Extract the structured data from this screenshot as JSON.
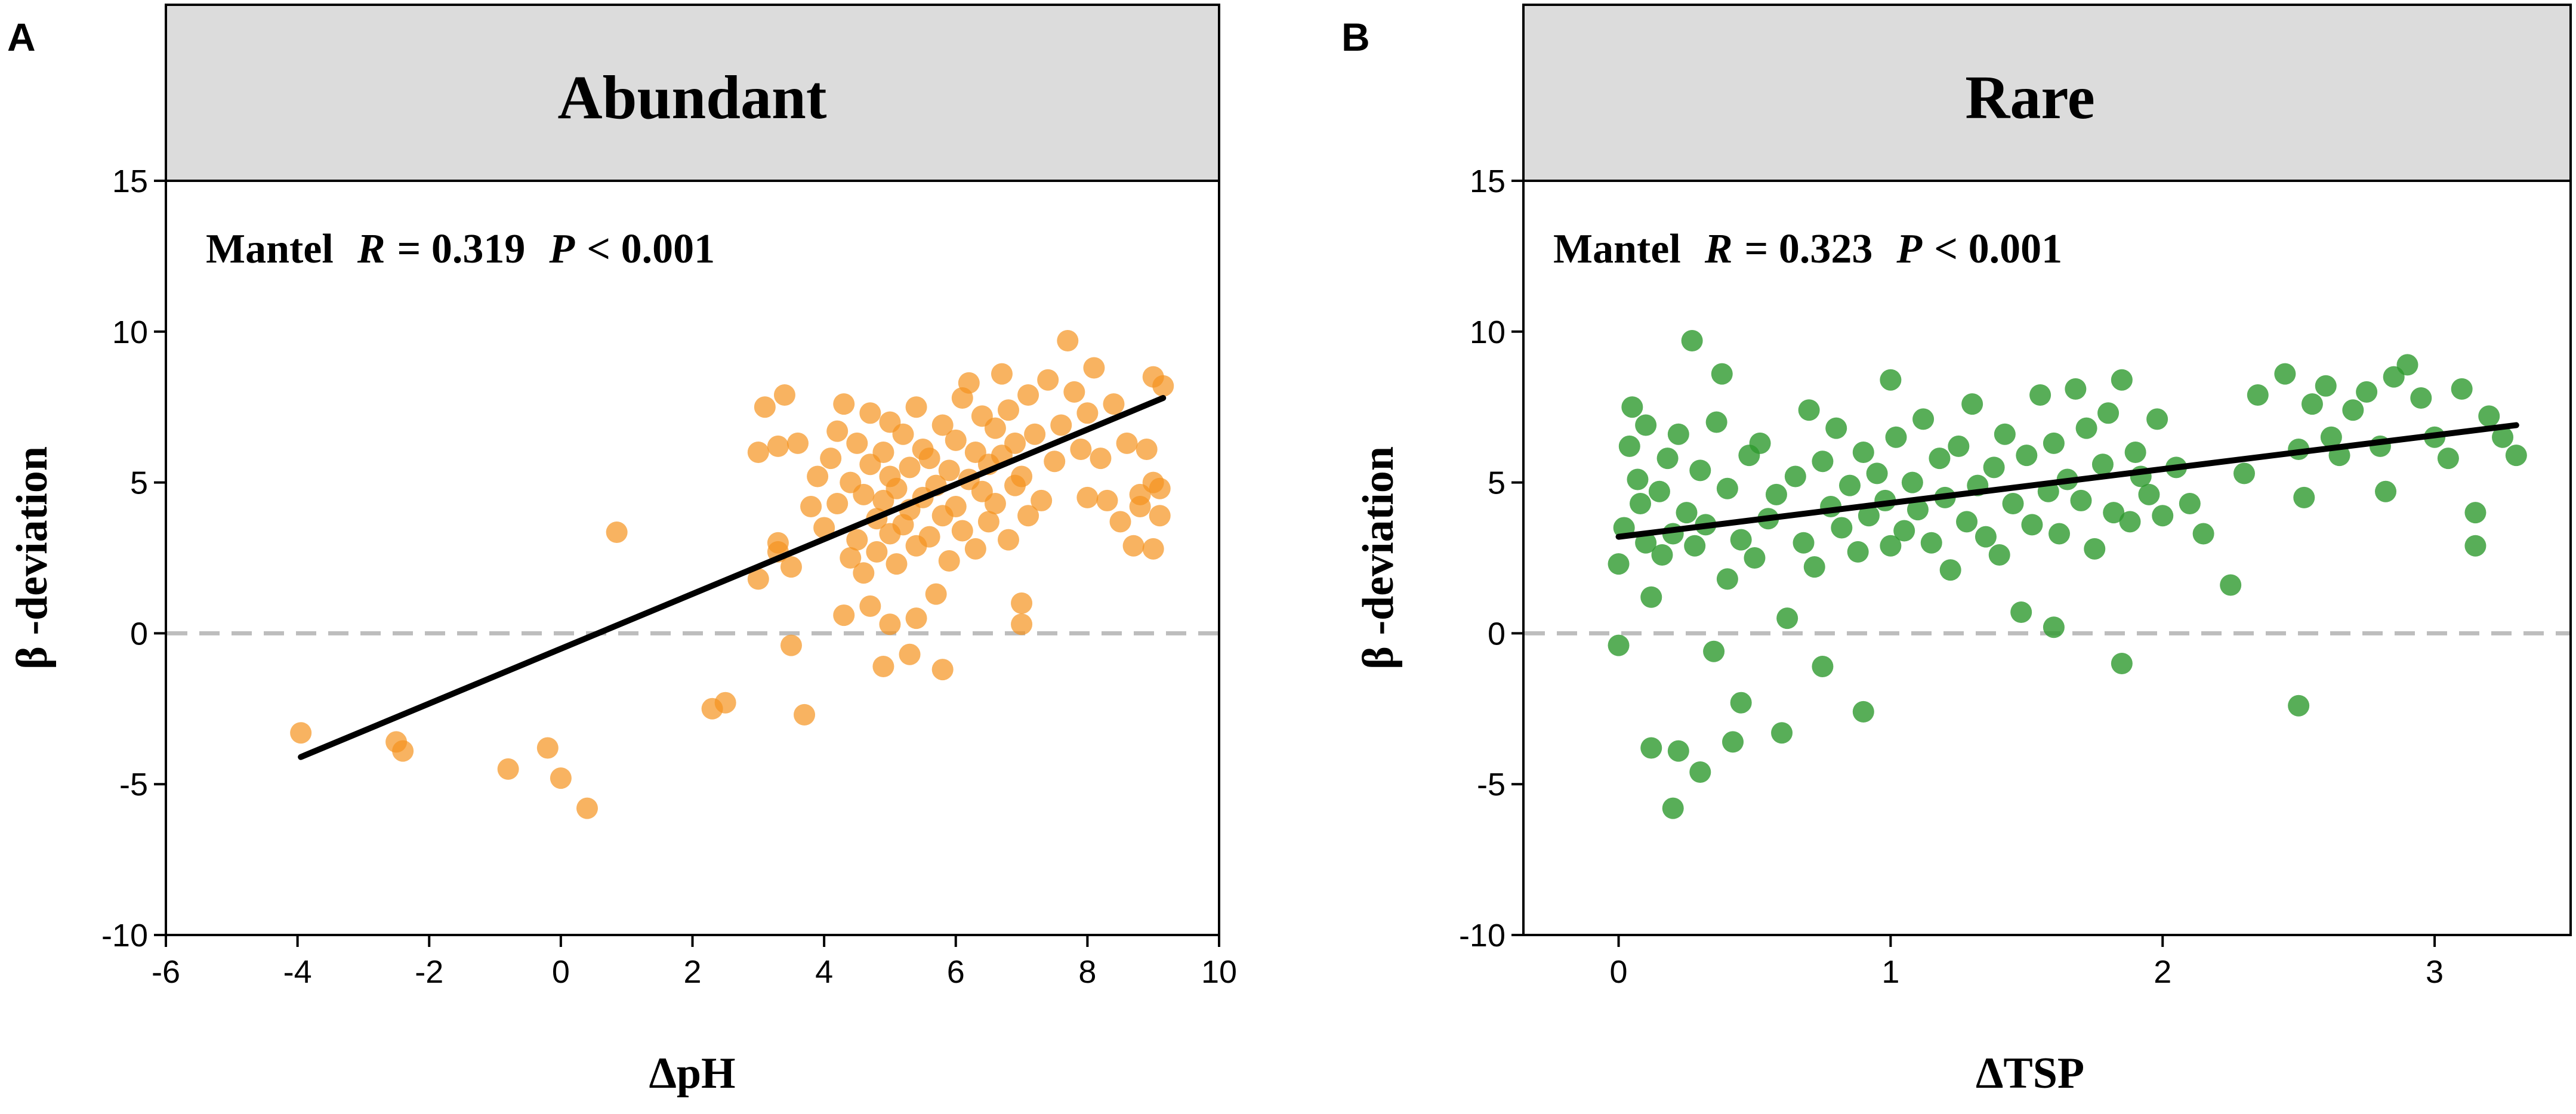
{
  "chart_data": [
    {
      "panel_letter": "A",
      "type": "scatter",
      "strip_title": "Abundant",
      "xlabel": "ΔpH",
      "ylabel": "β -deviation",
      "xlim": [
        -6,
        10
      ],
      "ylim": [
        -10,
        15
      ],
      "x_ticks": [
        -6,
        -4,
        -2,
        0,
        2,
        4,
        6,
        8,
        10
      ],
      "x_tick_labels": [
        "-6",
        "-4",
        "-2",
        "0",
        "2",
        "4",
        "6",
        "8",
        "10"
      ],
      "y_ticks": [
        -10,
        -5,
        0,
        5,
        10,
        15
      ],
      "y_tick_labels": [
        "-10",
        "-5",
        "0",
        "5",
        "10",
        "15"
      ],
      "annotation": {
        "mantel_label": "Mantel",
        "r_symbol": "R",
        "r_text": "= 0.319",
        "p_symbol": "P",
        "p_text": "< 0.001"
      },
      "point_color": "#F5931E",
      "point_opacity": 0.7,
      "fit_line": {
        "x": [
          -3.95,
          9.15
        ],
        "y": [
          -4.1,
          7.8
        ],
        "color": "#000000"
      },
      "reference_line": {
        "y": 0,
        "color": "#BDBDBD",
        "style": "dashed"
      },
      "points": [
        [
          -3.95,
          -3.3
        ],
        [
          -2.5,
          -3.6
        ],
        [
          -2.4,
          -3.9
        ],
        [
          -0.8,
          -4.5
        ],
        [
          -0.2,
          -3.8
        ],
        [
          0.0,
          -4.8
        ],
        [
          0.4,
          -5.8
        ],
        [
          0.85,
          3.35
        ],
        [
          2.3,
          -2.5
        ],
        [
          2.5,
          -2.3
        ],
        [
          3.7,
          -2.7
        ],
        [
          3.5,
          -0.4
        ],
        [
          4.9,
          -1.1
        ],
        [
          5.3,
          -0.7
        ],
        [
          5.8,
          -1.2
        ],
        [
          7.0,
          0.3
        ],
        [
          7.0,
          1.0
        ],
        [
          5.0,
          0.3
        ],
        [
          5.4,
          0.5
        ],
        [
          4.7,
          0.9
        ],
        [
          4.3,
          0.6
        ],
        [
          3.0,
          1.8
        ],
        [
          3.3,
          2.7
        ],
        [
          3.3,
          3.0
        ],
        [
          3.5,
          2.2
        ],
        [
          3.0,
          6.0
        ],
        [
          3.1,
          7.5
        ],
        [
          3.3,
          6.2
        ],
        [
          3.4,
          7.9
        ],
        [
          3.6,
          6.3
        ],
        [
          3.8,
          4.2
        ],
        [
          3.9,
          5.2
        ],
        [
          4.0,
          3.5
        ],
        [
          4.1,
          5.8
        ],
        [
          4.2,
          6.7
        ],
        [
          4.2,
          4.3
        ],
        [
          4.3,
          7.6
        ],
        [
          4.4,
          2.5
        ],
        [
          4.4,
          5.0
        ],
        [
          4.5,
          3.1
        ],
        [
          4.5,
          6.3
        ],
        [
          4.6,
          4.6
        ],
        [
          4.6,
          2.0
        ],
        [
          4.7,
          7.3
        ],
        [
          4.7,
          5.6
        ],
        [
          4.8,
          3.8
        ],
        [
          4.8,
          2.7
        ],
        [
          4.9,
          6.0
        ],
        [
          4.9,
          4.4
        ],
        [
          5.0,
          5.2
        ],
        [
          5.0,
          3.3
        ],
        [
          5.0,
          7.0
        ],
        [
          5.1,
          2.3
        ],
        [
          5.1,
          4.8
        ],
        [
          5.2,
          6.6
        ],
        [
          5.2,
          3.6
        ],
        [
          5.3,
          5.5
        ],
        [
          5.3,
          4.1
        ],
        [
          5.4,
          2.9
        ],
        [
          5.4,
          7.5
        ],
        [
          5.5,
          6.1
        ],
        [
          5.5,
          4.5
        ],
        [
          5.6,
          3.2
        ],
        [
          5.6,
          5.8
        ],
        [
          5.7,
          1.3
        ],
        [
          5.7,
          4.9
        ],
        [
          5.8,
          6.9
        ],
        [
          5.8,
          3.9
        ],
        [
          5.9,
          5.4
        ],
        [
          5.9,
          2.4
        ],
        [
          6.0,
          6.4
        ],
        [
          6.0,
          4.2
        ],
        [
          6.1,
          7.8
        ],
        [
          6.1,
          3.4
        ],
        [
          6.2,
          5.1
        ],
        [
          6.2,
          8.3
        ],
        [
          6.3,
          6.0
        ],
        [
          6.3,
          2.8
        ],
        [
          6.4,
          4.7
        ],
        [
          6.4,
          7.2
        ],
        [
          6.5,
          5.6
        ],
        [
          6.5,
          3.7
        ],
        [
          6.6,
          6.8
        ],
        [
          6.6,
          4.3
        ],
        [
          6.7,
          8.6
        ],
        [
          6.7,
          5.9
        ],
        [
          6.8,
          3.1
        ],
        [
          6.8,
          7.4
        ],
        [
          6.9,
          4.9
        ],
        [
          6.9,
          6.3
        ],
        [
          7.0,
          5.2
        ],
        [
          7.1,
          7.9
        ],
        [
          7.1,
          3.9
        ],
        [
          7.2,
          6.6
        ],
        [
          7.3,
          4.4
        ],
        [
          7.4,
          8.4
        ],
        [
          7.5,
          5.7
        ],
        [
          7.6,
          6.9
        ],
        [
          7.7,
          9.7
        ],
        [
          7.8,
          8.0
        ],
        [
          7.9,
          6.1
        ],
        [
          8.0,
          4.5
        ],
        [
          8.0,
          7.3
        ],
        [
          8.1,
          8.8
        ],
        [
          8.2,
          5.8
        ],
        [
          8.3,
          4.4
        ],
        [
          8.4,
          7.6
        ],
        [
          8.5,
          3.7
        ],
        [
          8.6,
          6.3
        ],
        [
          8.7,
          2.9
        ],
        [
          8.8,
          4.6
        ],
        [
          8.9,
          6.1
        ],
        [
          9.0,
          5.0
        ],
        [
          9.0,
          8.5
        ],
        [
          9.1,
          4.8
        ],
        [
          9.1,
          3.9
        ],
        [
          9.15,
          8.2
        ],
        [
          9.0,
          2.8
        ],
        [
          8.8,
          4.2
        ]
      ]
    },
    {
      "panel_letter": "B",
      "type": "scatter",
      "strip_title": "Rare",
      "xlabel": "ΔTSP",
      "ylabel": "β -deviation",
      "xlim": [
        -0.35,
        3.5
      ],
      "ylim": [
        -10,
        15
      ],
      "x_ticks": [
        0,
        1,
        2,
        3
      ],
      "x_tick_labels": [
        "0",
        "1",
        "2",
        "3"
      ],
      "y_ticks": [
        -10,
        -5,
        0,
        5,
        10,
        15
      ],
      "y_tick_labels": [
        "-10",
        "-5",
        "0",
        "5",
        "10",
        "15"
      ],
      "annotation": {
        "mantel_label": "Mantel",
        "r_symbol": "R",
        "r_text": "= 0.323",
        "p_symbol": "P",
        "p_text": "< 0.001"
      },
      "point_color": "#2E9A2E",
      "point_opacity": 0.8,
      "fit_line": {
        "x": [
          0.0,
          3.3
        ],
        "y": [
          3.2,
          6.9
        ],
        "color": "#000000"
      },
      "reference_line": {
        "y": 0,
        "color": "#BDBDBD",
        "style": "dashed"
      },
      "points": [
        [
          0.0,
          -0.4
        ],
        [
          0.0,
          2.3
        ],
        [
          0.02,
          3.5
        ],
        [
          0.04,
          6.2
        ],
        [
          0.05,
          7.5
        ],
        [
          0.07,
          5.1
        ],
        [
          0.08,
          4.3
        ],
        [
          0.1,
          3.0
        ],
        [
          0.1,
          6.9
        ],
        [
          0.12,
          1.2
        ],
        [
          0.12,
          -3.8
        ],
        [
          0.15,
          4.7
        ],
        [
          0.16,
          2.6
        ],
        [
          0.18,
          5.8
        ],
        [
          0.2,
          3.3
        ],
        [
          0.2,
          -5.8
        ],
        [
          0.22,
          6.6
        ],
        [
          0.22,
          -3.9
        ],
        [
          0.25,
          4.0
        ],
        [
          0.27,
          9.7
        ],
        [
          0.28,
          2.9
        ],
        [
          0.3,
          -4.6
        ],
        [
          0.3,
          5.4
        ],
        [
          0.32,
          3.6
        ],
        [
          0.35,
          -0.6
        ],
        [
          0.36,
          7.0
        ],
        [
          0.38,
          8.6
        ],
        [
          0.4,
          1.8
        ],
        [
          0.4,
          4.8
        ],
        [
          0.42,
          -3.6
        ],
        [
          0.45,
          3.1
        ],
        [
          0.45,
          -2.3
        ],
        [
          0.48,
          5.9
        ],
        [
          0.5,
          2.5
        ],
        [
          0.52,
          6.3
        ],
        [
          0.55,
          3.8
        ],
        [
          0.58,
          4.6
        ],
        [
          0.6,
          -3.3
        ],
        [
          0.62,
          0.5
        ],
        [
          0.65,
          5.2
        ],
        [
          0.68,
          3.0
        ],
        [
          0.7,
          7.4
        ],
        [
          0.72,
          2.2
        ],
        [
          0.75,
          -1.1
        ],
        [
          0.75,
          5.7
        ],
        [
          0.78,
          4.2
        ],
        [
          0.8,
          6.8
        ],
        [
          0.82,
          3.5
        ],
        [
          0.85,
          4.9
        ],
        [
          0.88,
          2.7
        ],
        [
          0.9,
          -2.6
        ],
        [
          0.9,
          6.0
        ],
        [
          0.92,
          3.9
        ],
        [
          0.95,
          5.3
        ],
        [
          0.98,
          4.4
        ],
        [
          1.0,
          8.4
        ],
        [
          1.0,
          2.9
        ],
        [
          1.02,
          6.5
        ],
        [
          1.05,
          3.4
        ],
        [
          1.08,
          5.0
        ],
        [
          1.1,
          4.1
        ],
        [
          1.12,
          7.1
        ],
        [
          1.15,
          3.0
        ],
        [
          1.18,
          5.8
        ],
        [
          1.2,
          4.5
        ],
        [
          1.22,
          2.1
        ],
        [
          1.25,
          6.2
        ],
        [
          1.28,
          3.7
        ],
        [
          1.3,
          7.6
        ],
        [
          1.32,
          4.9
        ],
        [
          1.35,
          3.2
        ],
        [
          1.38,
          5.5
        ],
        [
          1.4,
          2.6
        ],
        [
          1.42,
          6.6
        ],
        [
          1.45,
          4.3
        ],
        [
          1.48,
          0.7
        ],
        [
          1.5,
          5.9
        ],
        [
          1.52,
          3.6
        ],
        [
          1.55,
          7.9
        ],
        [
          1.58,
          4.7
        ],
        [
          1.6,
          0.2
        ],
        [
          1.6,
          6.3
        ],
        [
          1.62,
          3.3
        ],
        [
          1.65,
          5.1
        ],
        [
          1.68,
          8.1
        ],
        [
          1.7,
          4.4
        ],
        [
          1.72,
          6.8
        ],
        [
          1.75,
          2.8
        ],
        [
          1.78,
          5.6
        ],
        [
          1.8,
          7.3
        ],
        [
          1.82,
          4.0
        ],
        [
          1.85,
          -1.0
        ],
        [
          1.85,
          8.4
        ],
        [
          1.88,
          3.7
        ],
        [
          1.9,
          6.0
        ],
        [
          1.92,
          5.2
        ],
        [
          1.95,
          4.6
        ],
        [
          1.98,
          7.1
        ],
        [
          2.0,
          3.9
        ],
        [
          2.05,
          5.5
        ],
        [
          2.1,
          4.3
        ],
        [
          2.15,
          3.3
        ],
        [
          2.25,
          1.6
        ],
        [
          2.3,
          5.3
        ],
        [
          2.35,
          7.9
        ],
        [
          2.45,
          8.6
        ],
        [
          2.5,
          -2.4
        ],
        [
          2.5,
          6.1
        ],
        [
          2.52,
          4.5
        ],
        [
          2.55,
          7.6
        ],
        [
          2.6,
          8.2
        ],
        [
          2.62,
          6.5
        ],
        [
          2.65,
          5.9
        ],
        [
          2.7,
          7.4
        ],
        [
          2.75,
          8.0
        ],
        [
          2.8,
          6.2
        ],
        [
          2.82,
          4.7
        ],
        [
          2.85,
          8.5
        ],
        [
          2.9,
          8.9
        ],
        [
          2.95,
          7.8
        ],
        [
          3.0,
          6.5
        ],
        [
          3.05,
          5.8
        ],
        [
          3.1,
          8.1
        ],
        [
          3.15,
          4.0
        ],
        [
          3.15,
          2.9
        ],
        [
          3.2,
          7.2
        ],
        [
          3.25,
          6.5
        ],
        [
          3.3,
          5.9
        ]
      ]
    }
  ]
}
